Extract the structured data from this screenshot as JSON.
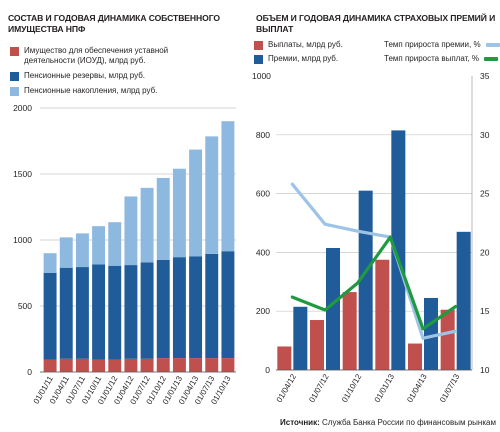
{
  "chart_data": [
    {
      "type": "bar",
      "title": "СОСТАВ И ГОДОВАЯ ДИНАМИКА СОБСТВЕННОГО ИМУЩЕСТВА НПФ",
      "stacked": true,
      "categories": [
        "01/01/11",
        "01/04/11",
        "01/07/11",
        "01/10/11",
        "01/01/12",
        "01/04/12",
        "01/07/12",
        "01/10/12",
        "01/01/13",
        "01/04/13",
        "01/07/13",
        "01/10/13"
      ],
      "series": [
        {
          "name": "Имущество для обеспечения уставной деятельности (ИОУД), млрд руб.",
          "color": "#c0504d",
          "values": [
            95,
            100,
            100,
            95,
            95,
            100,
            100,
            105,
            105,
            105,
            105,
            105
          ]
        },
        {
          "name": "Пенсионные резервы, млрд руб.",
          "color": "#1f5c99",
          "values": [
            655,
            690,
            695,
            720,
            710,
            710,
            730,
            745,
            765,
            770,
            790,
            810
          ]
        },
        {
          "name": "Пенсионные накопления, млрд руб.",
          "color": "#8db9e0",
          "values": [
            150,
            230,
            255,
            290,
            330,
            520,
            565,
            620,
            670,
            810,
            890,
            985
          ]
        }
      ],
      "ylim": [
        0,
        2000
      ],
      "yticks": [
        0,
        500,
        1000,
        1500,
        2000
      ],
      "grid": true,
      "legend": "top"
    },
    {
      "type": "bar",
      "title": "ОБЪЕМ И ГОДОВАЯ ДИНАМИКА СТРАХОВЫХ ПРЕМИЙ И ВЫПЛАТ",
      "categories": [
        "01/04/12",
        "01/07/12",
        "01/10/12",
        "01/01/13",
        "01/04/13",
        "01/07/13"
      ],
      "series": [
        {
          "name": "Выплаты, млрд руб.",
          "color": "#c0504d",
          "axis": "left",
          "values": [
            80,
            170,
            265,
            375,
            90,
            205
          ]
        },
        {
          "name": "Премии, млрд руб.",
          "color": "#1f5c99",
          "axis": "left",
          "values": [
            215,
            415,
            610,
            815,
            245,
            470
          ]
        },
        {
          "name": "Темп прироста премии, %",
          "type": "line",
          "color": "#9dc3e6",
          "axis": "right",
          "values": [
            25.8,
            22.4,
            21.8,
            21.3,
            12.7,
            13.3
          ]
        },
        {
          "name": "Темп прироста выплат, %",
          "type": "line",
          "color": "#1f9a3e",
          "axis": "right",
          "values": [
            16.2,
            15.1,
            17.4,
            21.3,
            13.5,
            15.4
          ]
        }
      ],
      "ylim": [
        0,
        1000
      ],
      "yticks": [
        0,
        200,
        400,
        600,
        800
      ],
      "y2lim": [
        10,
        35
      ],
      "y2ticks": [
        10,
        15,
        20,
        25,
        30,
        35
      ],
      "grid": true,
      "legend": "top"
    }
  ],
  "source": {
    "label": "Источник:",
    "text": "Служба Банка России по финансовым рынкам"
  },
  "colors": {
    "red": "#c0504d",
    "dark_blue": "#1f5c99",
    "light_blue": "#8db9e0",
    "line_light_blue": "#9dc3e6",
    "line_green": "#1f9a3e"
  }
}
